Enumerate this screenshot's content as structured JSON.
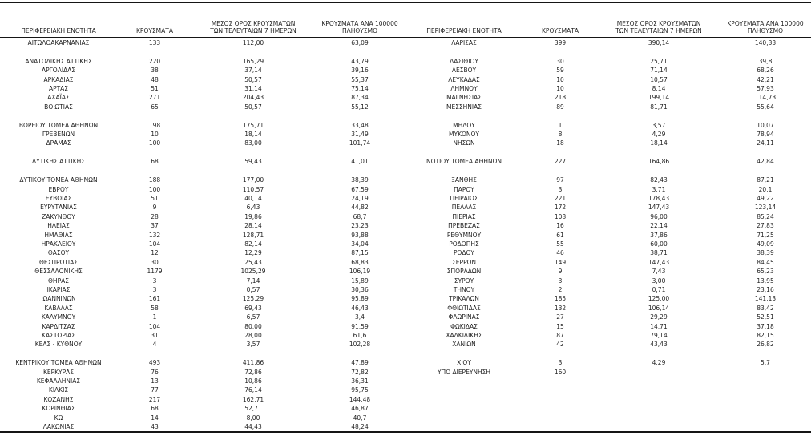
{
  "page": {
    "background": "#ffffff",
    "text_color": "#1f1f1f",
    "rule_color": "#151515"
  },
  "table": {
    "column_headers": {
      "region": "ΠΕΡΙΦΕΡΕΙΑΚΗ ΕΝΟΤΗΤΑ",
      "cases": "ΚΡΟΥΣΜΑΤΑ",
      "avg7_lines": [
        "ΜΕΣΟΣ ΟΡΟΣ ΚΡΟΥΣΜΑΤΩΝ",
        "ΤΩΝ ΤΕΛΕΥΤΑΙΩΝ 7 ΗΜΕΡΩΝ"
      ],
      "per100k_lines": [
        "ΚΡΟΥΣΜΑΤΑ ΑΝΑ 100000",
        "ΠΛΗΘΥΣΜΟ"
      ]
    },
    "rows": [
      {
        "left": {
          "region": "ΑΙΤΩΛΟΑΚΑΡΝΑΝΙΑΣ",
          "cases": "133",
          "avg7": "112,00",
          "per100k": "63,09"
        },
        "right": {
          "region": "ΛΑΡΙΣΑΣ",
          "cases": "399",
          "avg7": "390,14",
          "per100k": "140,33"
        }
      },
      {
        "left": null,
        "right": null
      },
      {
        "left": {
          "region": "ΑΝΑΤΟΛΙΚΗΣ ΑΤΤΙΚΗΣ",
          "cases": "220",
          "avg7": "165,29",
          "per100k": "43,79"
        },
        "right": {
          "region": "ΛΑΣΙΘΙΟΥ",
          "cases": "30",
          "avg7": "25,71",
          "per100k": "39,8"
        }
      },
      {
        "left": {
          "region": "ΑΡΓΟΛΙΔΑΣ",
          "cases": "38",
          "avg7": "37,14",
          "per100k": "39,16"
        },
        "right": {
          "region": "ΛΕΣΒΟΥ",
          "cases": "59",
          "avg7": "71,14",
          "per100k": "68,26"
        }
      },
      {
        "left": {
          "region": "ΑΡΚΑΔΙΑΣ",
          "cases": "48",
          "avg7": "50,57",
          "per100k": "55,37"
        },
        "right": {
          "region": "ΛΕΥΚΑΔΑΣ",
          "cases": "10",
          "avg7": "10,57",
          "per100k": "42,21"
        }
      },
      {
        "left": {
          "region": "ΑΡΤΑΣ",
          "cases": "51",
          "avg7": "31,14",
          "per100k": "75,14"
        },
        "right": {
          "region": "ΛΗΜΝΟΥ",
          "cases": "10",
          "avg7": "8,14",
          "per100k": "57,93"
        }
      },
      {
        "left": {
          "region": "ΑΧΑΪΑΣ",
          "cases": "271",
          "avg7": "204,43",
          "per100k": "87,34"
        },
        "right": {
          "region": "ΜΑΓΝΗΣΙΑΣ",
          "cases": "218",
          "avg7": "199,14",
          "per100k": "114,73"
        }
      },
      {
        "left": {
          "region": "ΒΟΙΩΤΙΑΣ",
          "cases": "65",
          "avg7": "50,57",
          "per100k": "55,12"
        },
        "right": {
          "region": "ΜΕΣΣΗΝΙΑΣ",
          "cases": "89",
          "avg7": "81,71",
          "per100k": "55,64"
        }
      },
      {
        "left": null,
        "right": null
      },
      {
        "left": {
          "region": "ΒΟΡΕΙΟΥ ΤΟΜΕΑ ΑΘΗΝΩΝ",
          "cases": "198",
          "avg7": "175,71",
          "per100k": "33,48"
        },
        "right": {
          "region": "ΜΗΛΟΥ",
          "cases": "1",
          "avg7": "3,57",
          "per100k": "10,07"
        }
      },
      {
        "left": {
          "region": "ΓΡΕΒΕΝΩΝ",
          "cases": "10",
          "avg7": "18,14",
          "per100k": "31,49"
        },
        "right": {
          "region": "ΜΥΚΟΝΟΥ",
          "cases": "8",
          "avg7": "4,29",
          "per100k": "78,94"
        }
      },
      {
        "left": {
          "region": "ΔΡΑΜΑΣ",
          "cases": "100",
          "avg7": "83,00",
          "per100k": "101,74"
        },
        "right": {
          "region": "ΝΗΣΩΝ",
          "cases": "18",
          "avg7": "18,14",
          "per100k": "24,11"
        }
      },
      {
        "left": null,
        "right": null
      },
      {
        "left": {
          "region": "ΔΥΤΙΚΗΣ ΑΤΤΙΚΗΣ",
          "cases": "68",
          "avg7": "59,43",
          "per100k": "41,01"
        },
        "right": {
          "region": "ΝΟΤΙΟΥ ΤΟΜΕΑ ΑΘΗΝΩΝ",
          "cases": "227",
          "avg7": "164,86",
          "per100k": "42,84"
        }
      },
      {
        "left": null,
        "right": null
      },
      {
        "left": {
          "region": "ΔΥΤΙΚΟΥ ΤΟΜΕΑ ΑΘΗΝΩΝ",
          "cases": "188",
          "avg7": "177,00",
          "per100k": "38,39"
        },
        "right": {
          "region": "ΞΑΝΘΗΣ",
          "cases": "97",
          "avg7": "82,43",
          "per100k": "87,21"
        }
      },
      {
        "left": {
          "region": "ΕΒΡΟΥ",
          "cases": "100",
          "avg7": "110,57",
          "per100k": "67,59"
        },
        "right": {
          "region": "ΠΑΡΟΥ",
          "cases": "3",
          "avg7": "3,71",
          "per100k": "20,1"
        }
      },
      {
        "left": {
          "region": "ΕΥΒΟΙΑΣ",
          "cases": "51",
          "avg7": "40,14",
          "per100k": "24,19"
        },
        "right": {
          "region": "ΠΕΙΡΑΙΩΣ",
          "cases": "221",
          "avg7": "178,43",
          "per100k": "49,22"
        }
      },
      {
        "left": {
          "region": "ΕΥΡΥΤΑΝΙΑΣ",
          "cases": "9",
          "avg7": "6,43",
          "per100k": "44,82"
        },
        "right": {
          "region": "ΠΕΛΛΑΣ",
          "cases": "172",
          "avg7": "147,43",
          "per100k": "123,14"
        }
      },
      {
        "left": {
          "region": "ΖΑΚΥΝΘΟΥ",
          "cases": "28",
          "avg7": "19,86",
          "per100k": "68,7"
        },
        "right": {
          "region": "ΠΙΕΡΙΑΣ",
          "cases": "108",
          "avg7": "96,00",
          "per100k": "85,24"
        }
      },
      {
        "left": {
          "region": "ΗΛΕΙΑΣ",
          "cases": "37",
          "avg7": "28,14",
          "per100k": "23,23"
        },
        "right": {
          "region": "ΠΡΕΒΕΖΑΣ",
          "cases": "16",
          "avg7": "22,14",
          "per100k": "27,83"
        }
      },
      {
        "left": {
          "region": "ΗΜΑΘΙΑΣ",
          "cases": "132",
          "avg7": "128,71",
          "per100k": "93,88"
        },
        "right": {
          "region": "ΡΕΘΥΜΝΟΥ",
          "cases": "61",
          "avg7": "37,86",
          "per100k": "71,25"
        }
      },
      {
        "left": {
          "region": "ΗΡΑΚΛΕΙΟΥ",
          "cases": "104",
          "avg7": "82,14",
          "per100k": "34,04"
        },
        "right": {
          "region": "ΡΟΔΟΠΗΣ",
          "cases": "55",
          "avg7": "60,00",
          "per100k": "49,09"
        }
      },
      {
        "left": {
          "region": "ΘΑΣΟΥ",
          "cases": "12",
          "avg7": "12,29",
          "per100k": "87,15"
        },
        "right": {
          "region": "ΡΟΔΟΥ",
          "cases": "46",
          "avg7": "38,71",
          "per100k": "38,39"
        }
      },
      {
        "left": {
          "region": "ΘΕΣΠΡΩΤΙΑΣ",
          "cases": "30",
          "avg7": "25,43",
          "per100k": "68,83"
        },
        "right": {
          "region": "ΣΕΡΡΩΝ",
          "cases": "149",
          "avg7": "147,43",
          "per100k": "84,45"
        }
      },
      {
        "left": {
          "region": "ΘΕΣΣΑΛΟΝΙΚΗΣ",
          "cases": "1179",
          "avg7": "1025,29",
          "per100k": "106,19"
        },
        "right": {
          "region": "ΣΠΟΡΑΔΩΝ",
          "cases": "9",
          "avg7": "7,43",
          "per100k": "65,23"
        }
      },
      {
        "left": {
          "region": "ΘΗΡΑΣ",
          "cases": "3",
          "avg7": "7,14",
          "per100k": "15,89"
        },
        "right": {
          "region": "ΣΥΡΟΥ",
          "cases": "3",
          "avg7": "3,00",
          "per100k": "13,95"
        }
      },
      {
        "left": {
          "region": "ΙΚΑΡΙΑΣ",
          "cases": "3",
          "avg7": "0,57",
          "per100k": "30,36"
        },
        "right": {
          "region": "ΤΗΝΟΥ",
          "cases": "2",
          "avg7": "0,71",
          "per100k": "23,16"
        }
      },
      {
        "left": {
          "region": "ΙΩΑΝΝΙΝΩΝ",
          "cases": "161",
          "avg7": "125,29",
          "per100k": "95,89"
        },
        "right": {
          "region": "ΤΡΙΚΑΛΩΝ",
          "cases": "185",
          "avg7": "125,00",
          "per100k": "141,13"
        }
      },
      {
        "left": {
          "region": "ΚΑΒΑΛΑΣ",
          "cases": "58",
          "avg7": "69,43",
          "per100k": "46,43"
        },
        "right": {
          "region": "ΦΘΙΩΤΙΔΑΣ",
          "cases": "132",
          "avg7": "106,14",
          "per100k": "83,42"
        }
      },
      {
        "left": {
          "region": "ΚΑΛΥΜΝΟΥ",
          "cases": "1",
          "avg7": "6,57",
          "per100k": "3,4"
        },
        "right": {
          "region": "ΦΛΩΡΙΝΑΣ",
          "cases": "27",
          "avg7": "29,29",
          "per100k": "52,51"
        }
      },
      {
        "left": {
          "region": "ΚΑΡΔΙΤΣΑΣ",
          "cases": "104",
          "avg7": "80,00",
          "per100k": "91,59"
        },
        "right": {
          "region": "ΦΩΚΙΔΑΣ",
          "cases": "15",
          "avg7": "14,71",
          "per100k": "37,18"
        }
      },
      {
        "left": {
          "region": "ΚΑΣΤΟΡΙΑΣ",
          "cases": "31",
          "avg7": "28,00",
          "per100k": "61,6"
        },
        "right": {
          "region": "ΧΑΛΚΙΔΙΚΗΣ",
          "cases": "87",
          "avg7": "79,14",
          "per100k": "82,15"
        }
      },
      {
        "left": {
          "region": "ΚΕΑΣ - ΚΥΘΝΟΥ",
          "cases": "4",
          "avg7": "3,57",
          "per100k": "102,28"
        },
        "right": {
          "region": "ΧΑΝΙΩΝ",
          "cases": "42",
          "avg7": "43,43",
          "per100k": "26,82"
        }
      },
      {
        "left": null,
        "right": null
      },
      {
        "left": {
          "region": "ΚΕΝΤΡΙΚΟΥ ΤΟΜΕΑ ΑΘΗΝΩΝ",
          "cases": "493",
          "avg7": "411,86",
          "per100k": "47,89"
        },
        "right": {
          "region": "ΧΙΟΥ",
          "cases": "3",
          "avg7": "4,29",
          "per100k": "5,7"
        }
      },
      {
        "left": {
          "region": "ΚΕΡΚΥΡΑΣ",
          "cases": "76",
          "avg7": "72,86",
          "per100k": "72,82"
        },
        "right": {
          "region": "ΥΠΟ ΔΙΕΡΕΥΝΗΣΗ",
          "cases": "160",
          "avg7": "",
          "per100k": ""
        }
      },
      {
        "left": {
          "region": "ΚΕΦΑΛΛΗΝΙΑΣ",
          "cases": "13",
          "avg7": "10,86",
          "per100k": "36,31"
        },
        "right": null
      },
      {
        "left": {
          "region": "ΚΙΛΚΙΣ",
          "cases": "77",
          "avg7": "76,14",
          "per100k": "95,75"
        },
        "right": null
      },
      {
        "left": {
          "region": "ΚΟΖΑΝΗΣ",
          "cases": "217",
          "avg7": "162,71",
          "per100k": "144,48"
        },
        "right": null
      },
      {
        "left": {
          "region": "ΚΟΡΙΝΘΙΑΣ",
          "cases": "68",
          "avg7": "52,71",
          "per100k": "46,87"
        },
        "right": null
      },
      {
        "left": {
          "region": "ΚΩ",
          "cases": "14",
          "avg7": "8,00",
          "per100k": "40,7"
        },
        "right": null
      },
      {
        "left": {
          "region": "ΛΑΚΩΝΙΑΣ",
          "cases": "43",
          "avg7": "44,43",
          "per100k": "48,24"
        },
        "right": null
      }
    ]
  }
}
